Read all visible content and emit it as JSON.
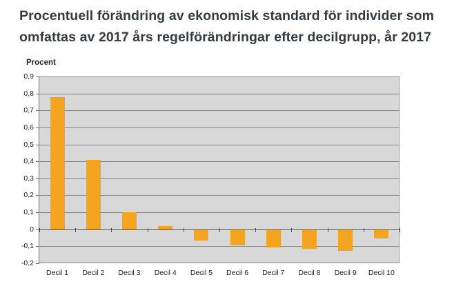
{
  "header": {
    "title_line1": "Procentuell förändring av ekonomisk standard för individer som",
    "title_line2": "omfattas av 2017 års regelförändringar efter decilgrupp, år 2017"
  },
  "chart_data": {
    "type": "bar",
    "title": "Procentuell förändring av ekonomisk standard för individer som omfattas av 2017 års regelförändringar efter decilgrupp, år 2017",
    "ylabel": "Procent",
    "xlabel": "",
    "categories": [
      "Decil 1",
      "Decil 2",
      "Decil 3",
      "Decil 4",
      "Decil 5",
      "Decil 6",
      "Decil 7",
      "Decil 8",
      "Decil 9",
      "Decil 10"
    ],
    "values": [
      0.78,
      0.41,
      0.1,
      0.02,
      -0.06,
      -0.09,
      -0.1,
      -0.11,
      -0.12,
      -0.05
    ],
    "ylim": [
      -0.2,
      0.9
    ],
    "ytick_step": 0.1,
    "grid": true,
    "legend": "none",
    "decimal_separator": ",",
    "colors": {
      "bar": "#f5a41f",
      "plot_background": "#d8d8d8",
      "gridline": "#828282",
      "zero_line": "#4f4f4f",
      "title_text": "#343b41",
      "axis_text": "#1f1f1f"
    }
  }
}
